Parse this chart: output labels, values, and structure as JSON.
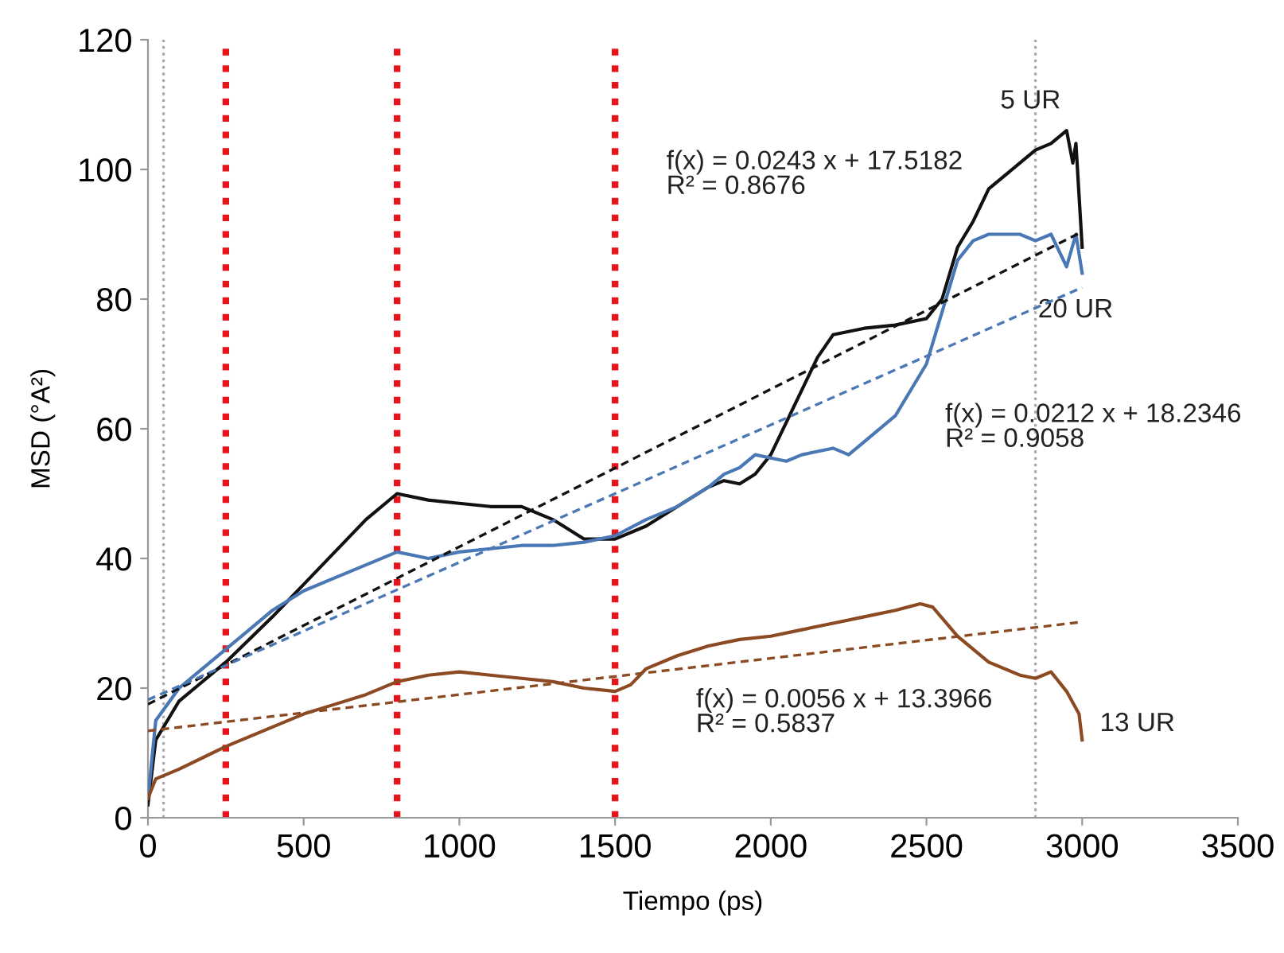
{
  "chart_data": {
    "type": "line",
    "xlabel": "Tiempo (ps)",
    "ylabel": "MSD (°A²)",
    "xlim": [
      0,
      3500
    ],
    "xticks": [
      0,
      500,
      1000,
      1500,
      2000,
      2500,
      3000,
      3500
    ],
    "ylim": [
      0,
      120
    ],
    "yticks": [
      0,
      20,
      40,
      60,
      80,
      100,
      120
    ],
    "grid": false,
    "legend": false,
    "marker": "none",
    "series": [
      {
        "name": "5 UR",
        "color": "#111111",
        "line_style": "solid",
        "x": [
          0,
          25,
          100,
          250,
          400,
          500,
          600,
          700,
          800,
          900,
          1000,
          1100,
          1200,
          1300,
          1400,
          1500,
          1600,
          1700,
          1800,
          1850,
          1900,
          1950,
          2000,
          2050,
          2100,
          2150,
          2200,
          2300,
          2400,
          2500,
          2550,
          2600,
          2650,
          2700,
          2800,
          2850,
          2900,
          2950,
          2970,
          2980,
          2990,
          3000
        ],
        "values": [
          2,
          12,
          18,
          24,
          31,
          36,
          41,
          46,
          50,
          49,
          48.5,
          48,
          48,
          46,
          43,
          43,
          45,
          48,
          51,
          52,
          51.5,
          53,
          56,
          61,
          66,
          71,
          74.5,
          75.5,
          76,
          77,
          80,
          88,
          92,
          97,
          101,
          103,
          104,
          106,
          101,
          104,
          96,
          88
        ]
      },
      {
        "name": "20 UR",
        "color": "#4a78b5",
        "line_style": "solid",
        "x": [
          0,
          25,
          100,
          200,
          300,
          400,
          500,
          600,
          700,
          800,
          900,
          1000,
          1100,
          1200,
          1300,
          1400,
          1500,
          1600,
          1700,
          1800,
          1850,
          1900,
          1950,
          2000,
          2050,
          2100,
          2200,
          2250,
          2300,
          2400,
          2500,
          2550,
          2600,
          2650,
          2700,
          2800,
          2850,
          2900,
          2950,
          2980,
          3000
        ],
        "values": [
          3,
          15,
          20,
          24,
          28,
          32,
          35,
          37,
          39,
          41,
          40,
          41,
          41.5,
          42,
          42,
          42.5,
          43.5,
          46,
          48,
          51,
          53,
          54,
          56,
          55.5,
          55,
          56,
          57,
          56,
          58,
          62,
          70,
          78,
          86,
          89,
          90,
          90,
          89,
          90,
          85,
          90,
          84
        ]
      },
      {
        "name": "13 UR",
        "color": "#8b4a22",
        "line_style": "solid",
        "x": [
          0,
          25,
          100,
          250,
          400,
          500,
          600,
          700,
          800,
          900,
          1000,
          1100,
          1200,
          1300,
          1400,
          1500,
          1550,
          1600,
          1700,
          1800,
          1900,
          2000,
          2100,
          2200,
          2300,
          2400,
          2480,
          2520,
          2600,
          2700,
          2800,
          2850,
          2900,
          2950,
          2990,
          3000
        ],
        "values": [
          3,
          6,
          7.5,
          11,
          14,
          16,
          17.5,
          19,
          21,
          22,
          22.5,
          22,
          21.5,
          21,
          20,
          19.5,
          20.5,
          23,
          25,
          26.5,
          27.5,
          28,
          29,
          30,
          31,
          32,
          33,
          32.5,
          28,
          24,
          22,
          21.5,
          22.5,
          19.5,
          16,
          12
        ]
      },
      {
        "color": "#111111",
        "line_style": "dashed",
        "x": [
          0,
          3000
        ],
        "values": [
          17.5,
          90.4
        ]
      },
      {
        "color": "#4a78b5",
        "line_style": "dashed",
        "x": [
          0,
          3000
        ],
        "values": [
          18.2,
          81.8
        ]
      },
      {
        "color": "#8b4a22",
        "line_style": "dashed",
        "x": [
          0,
          3000
        ],
        "values": [
          13.4,
          30.2
        ]
      }
    ],
    "ref_lines": [
      {
        "axis": "x",
        "value": 50,
        "color": "#aaaaaa",
        "line_style": "dotted"
      },
      {
        "axis": "x",
        "value": 2850,
        "color": "#aaaaaa",
        "line_style": "dotted"
      },
      {
        "axis": "x",
        "value": 250,
        "color": "#e8141c",
        "line_style": "dotted"
      },
      {
        "axis": "x",
        "value": 800,
        "color": "#e8141c",
        "line_style": "dotted"
      },
      {
        "axis": "x",
        "value": 1500,
        "color": "#e8141c",
        "line_style": "dotted"
      }
    ],
    "annotations": [
      "f(x) = 0.0243 x + 17.5182\nR² = 0.8676",
      "f(x) = 0.0212 x + 18.2346\nR² = 0.9058",
      "f(x) = 0.0056 x + 13.3966\nR² = 0.5837"
    ]
  }
}
